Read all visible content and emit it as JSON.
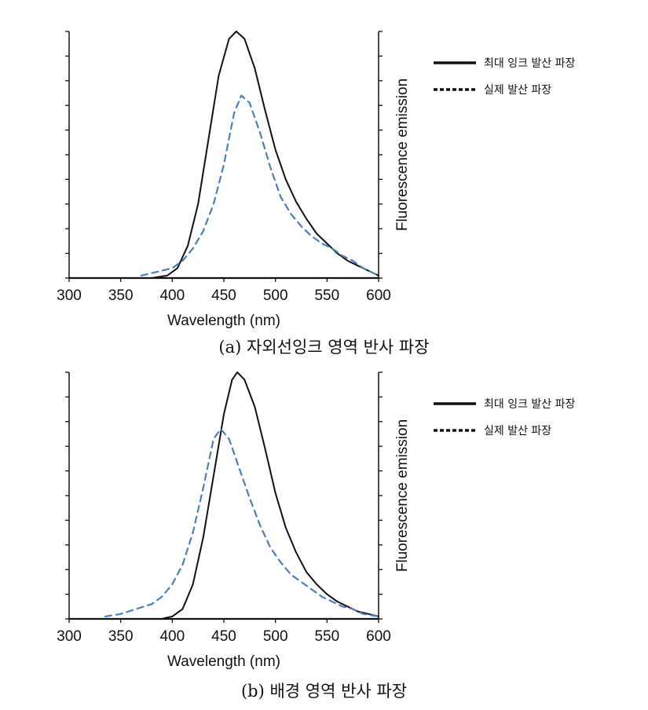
{
  "chart_data": [
    {
      "type": "line",
      "panel": "a",
      "caption": "(a) 자외선잉크 영역 반사 파장",
      "xlabel": "Wavelength (nm)",
      "ylabel": "Fluorescence emission",
      "xlim": [
        300,
        600
      ],
      "ylim": [
        0,
        1
      ],
      "xticks": [
        300,
        350,
        400,
        450,
        500,
        550,
        600
      ],
      "legend": {
        "placement": "top-right"
      },
      "series": [
        {
          "name": "최대 잉크 발산 파장",
          "style": "solid",
          "color": "#111111",
          "x": [
            300,
            380,
            395,
            405,
            415,
            425,
            435,
            445,
            455,
            462,
            470,
            480,
            490,
            500,
            510,
            520,
            530,
            540,
            550,
            560,
            570,
            580,
            590,
            600
          ],
          "y": [
            0,
            0,
            0.01,
            0.04,
            0.13,
            0.3,
            0.56,
            0.82,
            0.97,
            1.0,
            0.97,
            0.85,
            0.68,
            0.52,
            0.4,
            0.31,
            0.24,
            0.18,
            0.14,
            0.1,
            0.07,
            0.05,
            0.03,
            0.01
          ]
        },
        {
          "name": "실제 발산 파장",
          "style": "dashed",
          "color": "#4a7fbf",
          "x": [
            370,
            380,
            390,
            400,
            410,
            420,
            430,
            440,
            450,
            460,
            467,
            475,
            485,
            495,
            505,
            515,
            525,
            535,
            545,
            555,
            565,
            575,
            585,
            595,
            600
          ],
          "y": [
            0.01,
            0.02,
            0.03,
            0.04,
            0.07,
            0.12,
            0.19,
            0.3,
            0.46,
            0.67,
            0.74,
            0.71,
            0.59,
            0.45,
            0.33,
            0.26,
            0.21,
            0.17,
            0.14,
            0.12,
            0.09,
            0.07,
            0.04,
            0.02,
            0.01
          ]
        }
      ]
    },
    {
      "type": "line",
      "panel": "b",
      "caption": "(b) 배경 영역 반사 파장",
      "xlabel": "Wavelength (nm)",
      "ylabel": "Fluorescence emission",
      "xlim": [
        300,
        600
      ],
      "ylim": [
        0,
        1
      ],
      "xticks": [
        300,
        350,
        400,
        450,
        500,
        550,
        600
      ],
      "legend": {
        "placement": "top-right"
      },
      "series": [
        {
          "name": "최대 잉크 발산 파장",
          "style": "solid",
          "color": "#111111",
          "x": [
            300,
            390,
            400,
            410,
            420,
            430,
            440,
            450,
            458,
            463,
            470,
            480,
            490,
            500,
            510,
            520,
            530,
            540,
            550,
            560,
            570,
            580,
            590,
            600
          ],
          "y": [
            0,
            0,
            0.01,
            0.04,
            0.14,
            0.33,
            0.58,
            0.83,
            0.97,
            1.0,
            0.97,
            0.86,
            0.69,
            0.51,
            0.37,
            0.27,
            0.19,
            0.14,
            0.1,
            0.07,
            0.05,
            0.03,
            0.02,
            0.01
          ]
        },
        {
          "name": "실제 발산 파장",
          "style": "dashed",
          "color": "#4a7fbf",
          "x": [
            335,
            350,
            365,
            380,
            390,
            400,
            410,
            420,
            430,
            440,
            447,
            455,
            465,
            475,
            485,
            495,
            505,
            515,
            525,
            535,
            545,
            555,
            565,
            575,
            585,
            600
          ],
          "y": [
            0.01,
            0.02,
            0.04,
            0.06,
            0.09,
            0.14,
            0.22,
            0.35,
            0.53,
            0.73,
            0.77,
            0.73,
            0.61,
            0.49,
            0.38,
            0.29,
            0.23,
            0.18,
            0.15,
            0.12,
            0.09,
            0.07,
            0.05,
            0.04,
            0.02,
            0.01
          ]
        }
      ]
    }
  ]
}
